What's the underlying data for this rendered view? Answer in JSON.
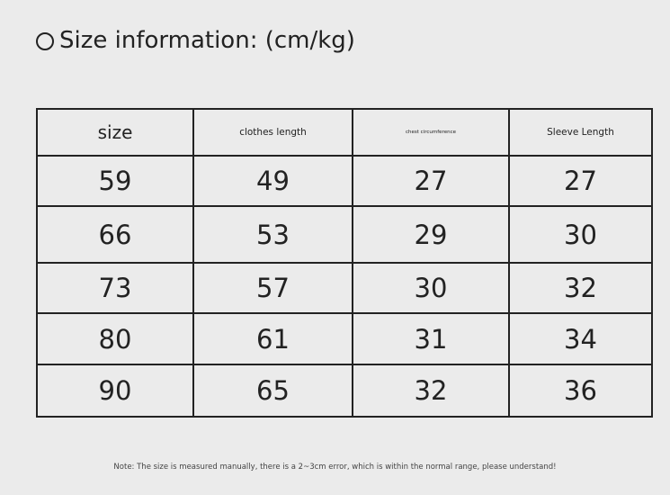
{
  "title": "Size information: (cm/kg)",
  "title_icon": "circle-outline-icon",
  "table": {
    "headers": [
      "size",
      "clothes length",
      "chest circumference",
      "Sleeve Length"
    ],
    "rows": [
      [
        "59",
        "49",
        "27",
        "27"
      ],
      [
        "66",
        "53",
        "29",
        "30"
      ],
      [
        "73",
        "57",
        "30",
        "32"
      ],
      [
        "80",
        "61",
        "31",
        "34"
      ],
      [
        "90",
        "65",
        "32",
        "36"
      ]
    ]
  },
  "note": "Note: The size is measured manually, there is a 2~3cm error, which is within the normal range, please understand!"
}
